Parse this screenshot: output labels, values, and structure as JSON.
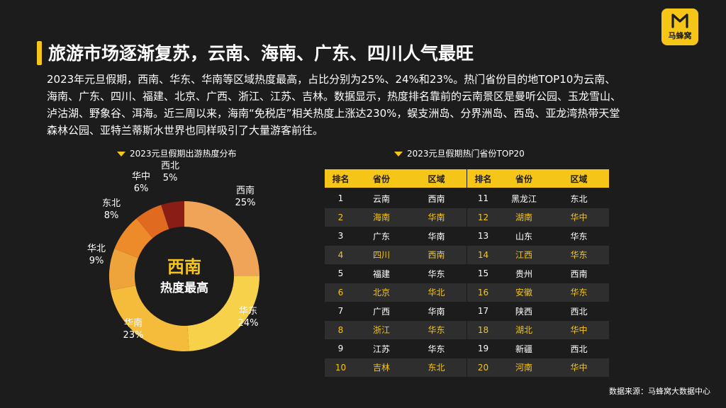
{
  "brand": {
    "name": "马蜂窝",
    "color": "#f5c518"
  },
  "title": "旅游市场逐渐复苏，云南、海南、广东、四川人气最旺",
  "paragraph": [
    "2023年元旦假期，西南、华东、华南等区域热度最高，占比分别为25%、24%和23%。热门省份目的地TOP10为云南、",
    "海南、广东、四川、福建、北京、广西、浙江、江苏、吉林。数据显示，热度排名靠前的云南景区是曼听公园、玉龙雪山、",
    "泸沽湖、野象谷、洱海。近三周以来，海南“免税店”相关热度上涨达230%，蜈支洲岛、分界洲岛、西岛、亚龙湾热带天堂",
    "森林公园、亚特兰蒂斯水世界也同样吸引了大量游客前往。"
  ],
  "chart_data": [
    {
      "type": "pie",
      "title": "2023元旦假期出游热度分布",
      "center_label": "西南",
      "center_sublabel": "热度最高",
      "slices": [
        {
          "label": "西南",
          "value": 25,
          "display": "25%",
          "color": "#f0a458"
        },
        {
          "label": "华东",
          "value": 24,
          "display": "24%",
          "color": "#f7d14a"
        },
        {
          "label": "华南",
          "value": 23,
          "display": "23%",
          "color": "#f4bc3a"
        },
        {
          "label": "华北",
          "value": 9,
          "display": "9%",
          "color": "#eea43a"
        },
        {
          "label": "东北",
          "value": 8,
          "display": "8%",
          "color": "#ed8a2a"
        },
        {
          "label": "华中",
          "value": 6,
          "display": "6%",
          "color": "#e06a20"
        },
        {
          "label": "西北",
          "value": 5,
          "display": "5%",
          "color": "#8a1d14"
        }
      ]
    },
    {
      "type": "table",
      "title": "2023元旦假期热门省份TOP20",
      "columns": [
        "排名",
        "省份",
        "区域"
      ],
      "rows": [
        [
          "1",
          "云南",
          "西南"
        ],
        [
          "2",
          "海南",
          "华南"
        ],
        [
          "3",
          "广东",
          "华南"
        ],
        [
          "4",
          "四川",
          "西南"
        ],
        [
          "5",
          "福建",
          "华东"
        ],
        [
          "6",
          "北京",
          "华北"
        ],
        [
          "7",
          "广西",
          "华南"
        ],
        [
          "8",
          "浙江",
          "华东"
        ],
        [
          "9",
          "江苏",
          "华东"
        ],
        [
          "10",
          "吉林",
          "东北"
        ],
        [
          "11",
          "黑龙江",
          "东北"
        ],
        [
          "12",
          "湖南",
          "华中"
        ],
        [
          "13",
          "山东",
          "华东"
        ],
        [
          "14",
          "江西",
          "华东"
        ],
        [
          "15",
          "贵州",
          "西南"
        ],
        [
          "16",
          "安徽",
          "华东"
        ],
        [
          "17",
          "陕西",
          "西北"
        ],
        [
          "18",
          "湖北",
          "华中"
        ],
        [
          "19",
          "新疆",
          "西北"
        ],
        [
          "20",
          "河南",
          "华中"
        ]
      ]
    }
  ],
  "source": "数据来源：马蜂窝大数据中心"
}
